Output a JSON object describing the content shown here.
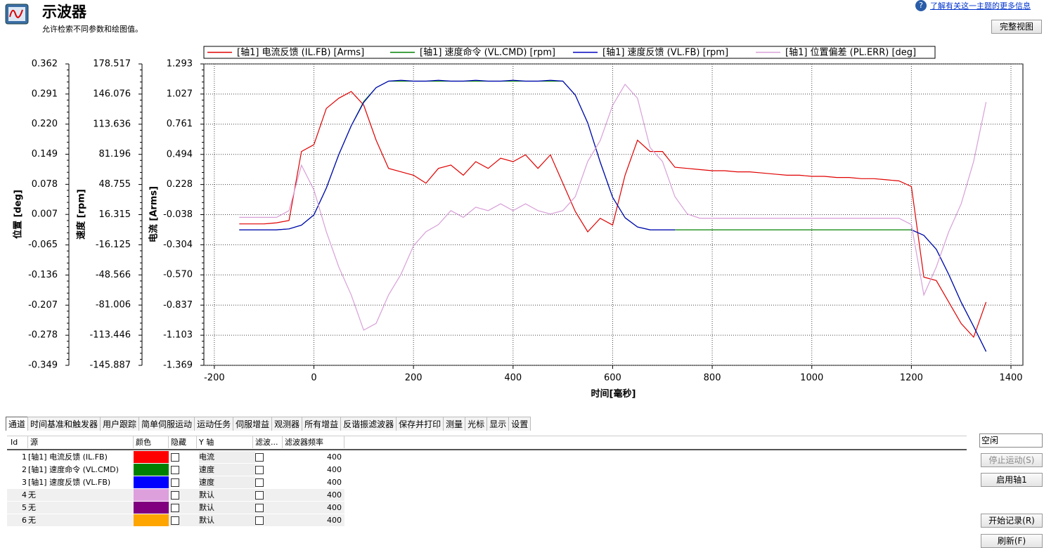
{
  "header": {
    "title": "示波器",
    "subtitle": "允许检索不同参数和绘图值。",
    "help_link": "了解有关这一主题的更多信息",
    "full_view_button": "完整视图"
  },
  "chart_data": {
    "type": "line",
    "xlabel": "时间[毫秒]",
    "ylabel": "电流 [Arms]",
    "y2label": "速度 [rpm]",
    "y3label": "位置 [deg]",
    "xlim": [
      -221,
      1424
    ],
    "xticks": [
      -200,
      0,
      200,
      400,
      600,
      800,
      1000,
      1200,
      1400
    ],
    "ylim": [
      -1.369,
      1.293
    ],
    "yticks": [
      1.293,
      1.027,
      0.761,
      0.494,
      0.228,
      -0.038,
      -0.304,
      {
        "value": -0.57,
        "label": "-0.570"
      },
      -0.837,
      -1.103,
      -1.369
    ],
    "y2lim": [
      -145.887,
      178.517
    ],
    "y2ticks": [
      178.517,
      146.076,
      113.636,
      81.196,
      48.755,
      16.315,
      -16.125,
      -48.566,
      -81.006,
      -113.446,
      -145.887
    ],
    "y3lim": [
      -0.349,
      0.362
    ],
    "y3ticks": [
      0.362,
      0.291,
      {
        "value": 0.22,
        "label": "0.220"
      },
      0.149,
      0.078,
      0.007,
      -0.065,
      -0.136,
      -0.207,
      -0.278,
      -0.349
    ],
    "grid": true,
    "x": [
      -150,
      -125,
      -100,
      -75,
      -50,
      -25,
      0,
      25,
      50,
      75,
      100,
      125,
      150,
      175,
      200,
      225,
      250,
      275,
      300,
      325,
      350,
      375,
      400,
      425,
      450,
      475,
      500,
      525,
      550,
      575,
      600,
      625,
      650,
      675,
      700,
      725,
      750,
      775,
      800,
      825,
      850,
      875,
      900,
      925,
      950,
      975,
      1000,
      1025,
      1050,
      1075,
      1100,
      1125,
      1150,
      1175,
      1200,
      1225,
      1250,
      1275,
      1300,
      1325,
      1350
    ],
    "series": [
      {
        "name": "[轴1] 电流反馈 (IL.FB) [Arms]",
        "color": "#e00000",
        "axis": "y",
        "values": [
          -0.12,
          -0.12,
          -0.12,
          -0.11,
          -0.09,
          0.52,
          0.58,
          0.9,
          0.99,
          1.05,
          0.93,
          0.62,
          0.37,
          0.34,
          0.31,
          0.24,
          0.37,
          0.4,
          0.31,
          0.43,
          0.37,
          0.46,
          0.43,
          0.49,
          0.37,
          0.49,
          0.24,
          -0.01,
          -0.19,
          -0.07,
          -0.13,
          0.31,
          0.62,
          0.52,
          0.52,
          0.38,
          0.37,
          0.36,
          0.35,
          0.35,
          0.34,
          0.34,
          0.33,
          0.32,
          0.31,
          0.31,
          0.3,
          0.3,
          0.29,
          0.29,
          0.28,
          0.28,
          0.27,
          0.26,
          0.21,
          -0.59,
          -0.62,
          -0.81,
          -1.0,
          -1.12,
          -0.81
        ]
      },
      {
        "name": "[轴1] 速度命令 (VL.CMD) [rpm]",
        "color": "#008000",
        "axis": "y2",
        "values": [
          0,
          0,
          0,
          0,
          1,
          5,
          16,
          45,
          81,
          112,
          138,
          153,
          160,
          160,
          160,
          160,
          160,
          160,
          160,
          160,
          160,
          160,
          160,
          160,
          160,
          160,
          160,
          145,
          115,
          73,
          35,
          13,
          3,
          0,
          0,
          0,
          0,
          0,
          0,
          0,
          0,
          0,
          0,
          0,
          0,
          0,
          0,
          0,
          0,
          0,
          0,
          0,
          0,
          0,
          0,
          -6,
          -21,
          -48,
          -78,
          -104,
          -131
        ]
      },
      {
        "name": "[轴1] 速度反馈 (VL.FB) [rpm]",
        "color": "#0000c0",
        "axis": "y2",
        "values": [
          0,
          0,
          0,
          0,
          1,
          5,
          16,
          45,
          81,
          112,
          137,
          153,
          160,
          161,
          160,
          160,
          161,
          160,
          160,
          161,
          160,
          160,
          161,
          160,
          160,
          161,
          160,
          145,
          115,
          73,
          35,
          13,
          3,
          0,
          0,
          0,
          null,
          null,
          null,
          null,
          null,
          null,
          null,
          null,
          null,
          null,
          null,
          null,
          null,
          null,
          null,
          null,
          null,
          null,
          0,
          -6,
          -21,
          -48,
          -78,
          -104,
          -131
        ]
      },
      {
        "name": "[轴1] 位置偏差 (PL.ERR) [deg]",
        "color": "#d8a0d8",
        "axis": "y3",
        "values": [
          0,
          0,
          0,
          0,
          0.016,
          0.123,
          0.065,
          -0.034,
          -0.117,
          -0.183,
          -0.266,
          -0.25,
          -0.183,
          -0.134,
          -0.067,
          -0.034,
          -0.017,
          0.016,
          0,
          0.024,
          0.016,
          0.032,
          0.016,
          0.032,
          0.016,
          0.008,
          0.016,
          0.049,
          0.132,
          0.181,
          0.264,
          0.314,
          0.281,
          0.165,
          0.132,
          0.049,
          0.008,
          -0.002,
          -0.002,
          -0.002,
          -0.002,
          -0.002,
          -0.002,
          -0.002,
          -0.002,
          -0.002,
          -0.002,
          -0.002,
          -0.002,
          -0.002,
          -0.002,
          -0.002,
          -0.002,
          -0.002,
          -0.017,
          -0.183,
          -0.117,
          -0.034,
          0.032,
          0.132,
          0.272
        ]
      }
    ]
  },
  "tabs": [
    "通道",
    "时间基准和触发器",
    "用户跟踪",
    "简单伺服运动",
    "运动任务",
    "伺服增益",
    "观测器",
    "所有增益",
    "反谐振滤波器",
    "保存并打印",
    "测量",
    "光标",
    "显示",
    "设置"
  ],
  "table": {
    "columns": [
      "Id",
      "源",
      "颜色",
      "隐藏",
      "Y 轴",
      "滤波...",
      "滤波器频率"
    ],
    "rows": [
      {
        "id": 1,
        "source": "[轴1] 电流反馈 (IL.FB)",
        "color": "#ff0000",
        "y_axis": "电流",
        "filter_freq": 400
      },
      {
        "id": 2,
        "source": "[轴1] 速度命令 (VL.CMD)",
        "color": "#008000",
        "y_axis": "速度",
        "filter_freq": 400
      },
      {
        "id": 3,
        "source": "[轴1] 速度反馈 (VL.FB)",
        "color": "#0000ff",
        "y_axis": "速度",
        "filter_freq": 400
      },
      {
        "id": 4,
        "source": "无",
        "color": "#dda0dd",
        "y_axis": "默认",
        "filter_freq": 400
      },
      {
        "id": 5,
        "source": "无",
        "color": "#800080",
        "y_axis": "默认",
        "filter_freq": 400
      },
      {
        "id": 6,
        "source": "无",
        "color": "#ffa500",
        "y_axis": "默认",
        "filter_freq": 400
      }
    ]
  },
  "side_panel": {
    "status": "空闲",
    "buttons": [
      "停止运动(S)",
      "启用轴1",
      "开始记录(R)",
      "刷新(F)"
    ]
  }
}
